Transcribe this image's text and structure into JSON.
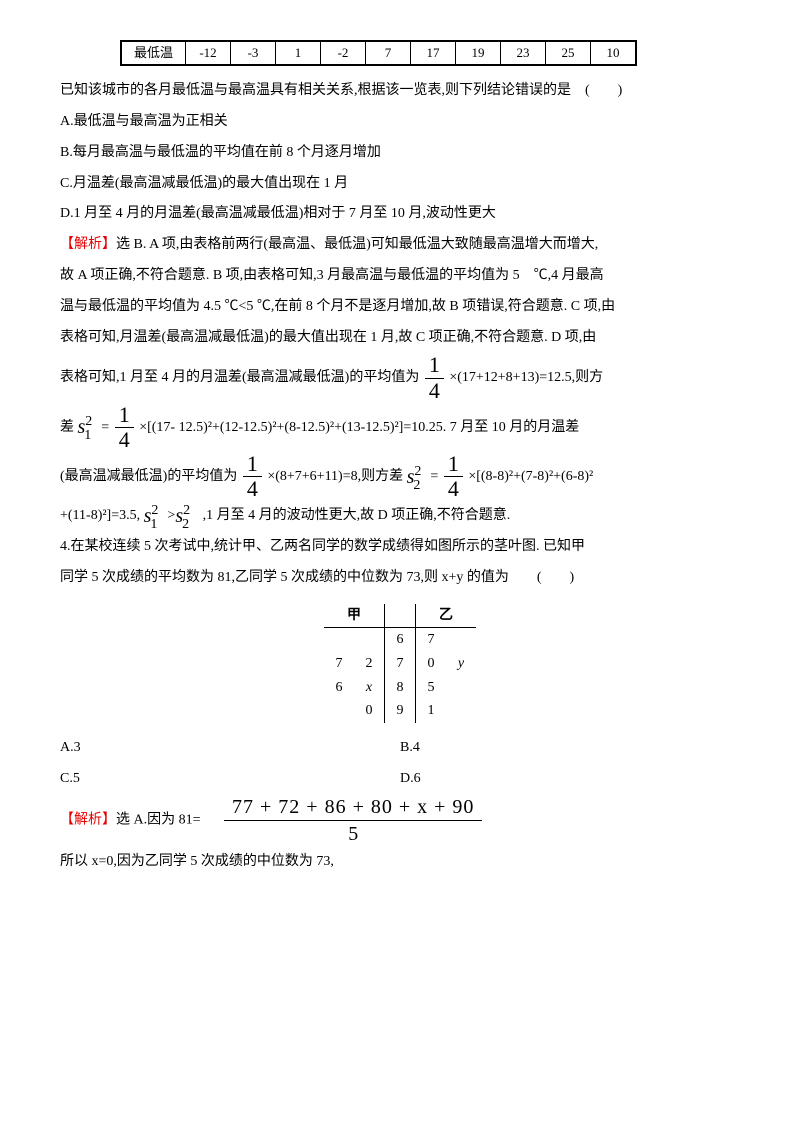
{
  "table": {
    "row_label": "最低温",
    "values": [
      "-12",
      "-3",
      "1",
      "-2",
      "7",
      "17",
      "19",
      "23",
      "25",
      "10"
    ]
  },
  "intro": "已知该城市的各月最低温与最高温具有相关关系,根据该一览表,则下列结论错误的是　(　　)",
  "optA": "A.最低温与最高温为正相关",
  "optB": "B.每月最高温与最低温的平均值在前 8 个月逐月增加",
  "optC": "C.月温差(最高温减最低温)的最大值出现在 1 月",
  "optD": "D.1 月至 4 月的月温差(最高温减最低温)相对于 7 月至 10 月,波动性更大",
  "ans_label": "【解析】",
  "ans1": "选 B. A 项,由表格前两行(最高温、最低温)可知最低温大致随最高温增大而增大,",
  "ans2": "故 A 项正确,不符合题意. B 项,由表格可知,3 月最高温与最低温的平均值为 5　℃,4 月最高",
  "ans3": "温与最低温的平均值为 4.5 ℃<5 ℃,在前 8 个月不是逐月增加,故 B 项错误,符合题意. C 项,由",
  "ans4": "表格可知,月温差(最高温减最低温)的最大值出现在 1 月,故 C 项正确,不符合题意. D 项,由",
  "ans5a": "表格可知,1 月至 4 月的月温差(最高温减最低温)的平均值为",
  "ans5b": "×(17+12+8+13)=12.5,则方",
  "ans6a": "差",
  "ans6b": "×[(17- 12.5)²+(12-12.5)²+(8-12.5)²+(13-12.5)²]=10.25. 7 月至 10 月的月温差",
  "ans7a": "(最高温减最低温)的平均值为",
  "ans7b": "×(8+7+6+11)=8,则方差",
  "ans7c": "×[(8-8)²+(7-8)²+(6-8)²",
  "ans8a": "+(11-8)²]=3.5,",
  "ans8b": ",1 月至 4 月的波动性更大,故 D 项正确,不符合题意.",
  "frac": {
    "num": "1",
    "den": "4"
  },
  "s1": {
    "base": "s",
    "sup": "2",
    "sub": "1"
  },
  "s2": {
    "base": "s",
    "sup": "2",
    "sub": "2"
  },
  "eq": "=",
  "gt": ">",
  "q4_1": "4.在某校连续 5 次考试中,统计甲、乙两名同学的数学成绩得如图所示的茎叶图. 已知甲",
  "q4_2": "同学 5 次成绩的平均数为 81,乙同学 5 次成绩的中位数为 73,则 x+y 的值为　　(　　)",
  "stemleaf": {
    "header_left": "甲",
    "header_right": "乙",
    "rows": [
      {
        "left": [
          "",
          ""
        ],
        "stem": "6",
        "right": [
          "7",
          ""
        ]
      },
      {
        "left": [
          "7",
          "2"
        ],
        "stem": "7",
        "right": [
          "0",
          "y"
        ]
      },
      {
        "left": [
          "6",
          "x"
        ],
        "stem": "8",
        "right": [
          "5",
          ""
        ]
      },
      {
        "left": [
          "",
          "0"
        ],
        "stem": "9",
        "right": [
          "1",
          ""
        ]
      }
    ]
  },
  "q4optA": "A.3",
  "q4optB": "B.4",
  "q4optC": "C.5",
  "q4optD": "D.6",
  "q4ans1a": "选 A.因为 81=",
  "q4frac": {
    "num": "77 + 72 + 86 + 80 + x + 90",
    "den": "5"
  },
  "q4ans2": "所以 x=0,因为乙同学 5 次成绩的中位数为 73,",
  "italic_y": "y",
  "italic_x": "x"
}
